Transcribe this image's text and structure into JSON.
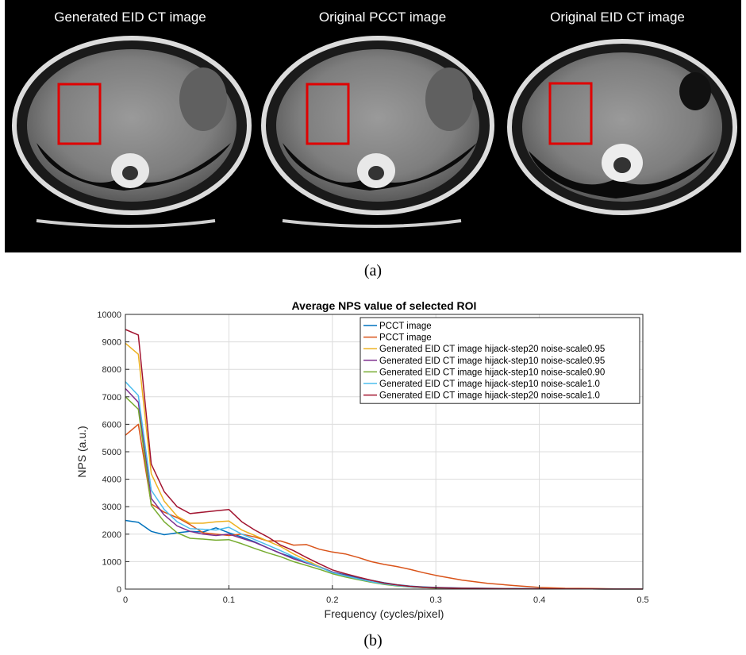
{
  "panel_a": {
    "titles": [
      "Generated EID CT image",
      "Original PCCT image",
      "Original EID CT image"
    ],
    "caption": "(a)"
  },
  "panel_b": {
    "caption": "(b)"
  },
  "chart_data": {
    "type": "line",
    "title": "Average NPS value of selected ROI",
    "xlabel": "Frequency (cycles/pixel)",
    "ylabel": "NPS (a.u.)",
    "xlim": [
      0,
      0.5
    ],
    "ylim": [
      0,
      10000
    ],
    "xticks": [
      "0",
      "0.1",
      "0.2",
      "0.3",
      "0.4",
      "0.5"
    ],
    "yticks": [
      "0",
      "1000",
      "2000",
      "3000",
      "4000",
      "5000",
      "6000",
      "7000",
      "8000",
      "9000",
      "10000"
    ],
    "grid": true,
    "legend_position": "top-right",
    "x": [
      0,
      0.0125,
      0.025,
      0.0375,
      0.05,
      0.0625,
      0.075,
      0.0875,
      0.1,
      0.1125,
      0.125,
      0.1375,
      0.15,
      0.1625,
      0.175,
      0.1875,
      0.2,
      0.2125,
      0.225,
      0.2375,
      0.25,
      0.2625,
      0.275,
      0.2875,
      0.3,
      0.325,
      0.35,
      0.375,
      0.4,
      0.425,
      0.45,
      0.475,
      0.5
    ],
    "series": [
      {
        "name": "PCCT image",
        "color": "#0072bd",
        "values": [
          2500,
          2430,
          2100,
          1980,
          2050,
          2100,
          2080,
          2230,
          2050,
          1900,
          1720,
          1500,
          1300,
          1150,
          980,
          820,
          620,
          520,
          420,
          320,
          230,
          160,
          110,
          80,
          60,
          40,
          30,
          20,
          15,
          10,
          10,
          5,
          5
        ]
      },
      {
        "name": "PCCT image",
        "color": "#d95319",
        "values": [
          5600,
          6000,
          3100,
          2800,
          2600,
          2350,
          2050,
          2000,
          1950,
          2000,
          1900,
          1750,
          1750,
          1600,
          1620,
          1450,
          1350,
          1280,
          1150,
          1000,
          900,
          820,
          720,
          600,
          500,
          330,
          210,
          130,
          60,
          30,
          20,
          10,
          5
        ]
      },
      {
        "name": "Generated EID CT image hijack-step20 noise-scale0.95",
        "color": "#edb120",
        "values": [
          8950,
          8550,
          4200,
          3200,
          2650,
          2400,
          2400,
          2450,
          2480,
          2150,
          1950,
          1750,
          1550,
          1280,
          1050,
          820,
          600,
          480,
          360,
          260,
          180,
          120,
          80,
          55,
          40,
          25,
          15,
          10,
          8,
          5,
          5,
          3,
          3
        ]
      },
      {
        "name": "Generated EID CT image hijack-step10 noise-scale0.95",
        "color": "#7e2f8e",
        "values": [
          7300,
          6800,
          3300,
          2700,
          2300,
          2100,
          2000,
          1950,
          2000,
          1850,
          1700,
          1500,
          1300,
          1100,
          950,
          800,
          620,
          500,
          380,
          270,
          190,
          130,
          85,
          60,
          45,
          28,
          18,
          12,
          8,
          5,
          5,
          3,
          3
        ]
      },
      {
        "name": "Generated EID CT image hijack-step10 noise-scale0.90",
        "color": "#77ac30",
        "values": [
          7000,
          6550,
          3050,
          2450,
          2050,
          1850,
          1820,
          1780,
          1800,
          1650,
          1480,
          1320,
          1180,
          1000,
          860,
          720,
          560,
          440,
          340,
          250,
          170,
          115,
          80,
          55,
          40,
          25,
          15,
          10,
          8,
          5,
          5,
          3,
          3
        ]
      },
      {
        "name": "Generated EID CT image hijack-step10 noise-scale1.0",
        "color": "#4dbeee",
        "values": [
          7550,
          7050,
          3600,
          2900,
          2450,
          2200,
          2180,
          2150,
          2250,
          2000,
          1800,
          1600,
          1400,
          1180,
          980,
          800,
          600,
          480,
          370,
          270,
          190,
          130,
          85,
          60,
          45,
          28,
          18,
          12,
          8,
          5,
          5,
          3,
          3
        ]
      },
      {
        "name": "Generated EID CT image hijack-step20 noise-scale1.0",
        "color": "#a2142f",
        "values": [
          9450,
          9250,
          4550,
          3550,
          3000,
          2750,
          2800,
          2850,
          2900,
          2450,
          2150,
          1900,
          1600,
          1400,
          1150,
          920,
          700,
          560,
          440,
          320,
          220,
          150,
          100,
          70,
          50,
          30,
          20,
          12,
          8,
          5,
          5,
          3,
          3
        ]
      }
    ]
  }
}
